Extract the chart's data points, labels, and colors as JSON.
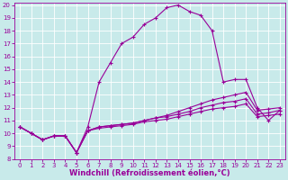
{
  "xlabel": "Windchill (Refroidissement éolien,°C)",
  "background_color": "#c8eaea",
  "grid_color": "#b8d8d8",
  "line_color": "#990099",
  "xlim": [
    -0.5,
    23.5
  ],
  "ylim": [
    8,
    20.2
  ],
  "yticks": [
    8,
    9,
    10,
    11,
    12,
    13,
    14,
    15,
    16,
    17,
    18,
    19,
    20
  ],
  "xticks": [
    0,
    1,
    2,
    3,
    4,
    5,
    6,
    7,
    8,
    9,
    10,
    11,
    12,
    13,
    14,
    15,
    16,
    17,
    18,
    19,
    20,
    21,
    22,
    23
  ],
  "line1_x": [
    0,
    1,
    2,
    3,
    4,
    5,
    6,
    7,
    8,
    9,
    10,
    11,
    12,
    13,
    14,
    15,
    16,
    17,
    18,
    19,
    20,
    21,
    22,
    23
  ],
  "line1_y": [
    10.5,
    10.0,
    9.5,
    9.8,
    9.8,
    8.5,
    10.5,
    14.0,
    15.5,
    17.0,
    17.5,
    18.5,
    19.0,
    19.8,
    20.0,
    19.5,
    19.2,
    18.0,
    14.0,
    14.2,
    14.2,
    12.0,
    11.0,
    11.8
  ],
  "line2_x": [
    0,
    1,
    2,
    3,
    4,
    5,
    6,
    7,
    8,
    9,
    10,
    11,
    12,
    13,
    14,
    15,
    16,
    17,
    18,
    19,
    20,
    21,
    22,
    23
  ],
  "line2_y": [
    10.5,
    10.0,
    9.5,
    9.8,
    9.8,
    8.5,
    10.2,
    10.5,
    10.6,
    10.7,
    10.8,
    11.0,
    11.2,
    11.4,
    11.7,
    12.0,
    12.3,
    12.6,
    12.8,
    13.0,
    13.2,
    11.8,
    11.9,
    12.0
  ],
  "line3_x": [
    0,
    1,
    2,
    3,
    4,
    5,
    6,
    7,
    8,
    9,
    10,
    11,
    12,
    13,
    14,
    15,
    16,
    17,
    18,
    19,
    20,
    21,
    22,
    23
  ],
  "line3_y": [
    10.5,
    10.0,
    9.5,
    9.8,
    9.8,
    8.5,
    10.2,
    10.5,
    10.6,
    10.7,
    10.8,
    11.0,
    11.2,
    11.3,
    11.5,
    11.7,
    12.0,
    12.2,
    12.4,
    12.5,
    12.7,
    11.5,
    11.6,
    11.8
  ],
  "line4_x": [
    0,
    1,
    2,
    3,
    4,
    5,
    6,
    7,
    8,
    9,
    10,
    11,
    12,
    13,
    14,
    15,
    16,
    17,
    18,
    19,
    20,
    21,
    22,
    23
  ],
  "line4_y": [
    10.5,
    10.0,
    9.5,
    9.8,
    9.8,
    8.5,
    10.2,
    10.4,
    10.5,
    10.6,
    10.7,
    10.9,
    11.0,
    11.1,
    11.3,
    11.5,
    11.7,
    11.9,
    12.0,
    12.1,
    12.3,
    11.3,
    11.4,
    11.5
  ],
  "marker": "+",
  "markersize": 3.5,
  "linewidth": 0.8,
  "tick_fontsize": 5,
  "xlabel_fontsize": 6
}
